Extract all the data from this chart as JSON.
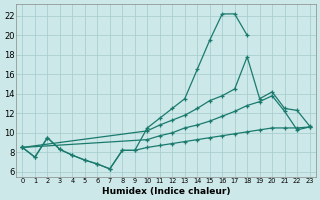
{
  "xlabel": "Humidex (Indice chaleur)",
  "bg_color": "#cce8e8",
  "grid_color": "#aacece",
  "line_color": "#1a7a6e",
  "xlim": [
    -0.5,
    23.5
  ],
  "ylim": [
    5.5,
    23.2
  ],
  "xticks": [
    0,
    1,
    2,
    3,
    4,
    5,
    6,
    7,
    8,
    9,
    10,
    11,
    12,
    13,
    14,
    15,
    16,
    17,
    18,
    19,
    20,
    21,
    22,
    23
  ],
  "yticks": [
    6,
    8,
    10,
    12,
    14,
    16,
    18,
    20,
    22
  ],
  "curves": [
    {
      "x": [
        0,
        1,
        2,
        3,
        4,
        5,
        6,
        7,
        8,
        9,
        10,
        11,
        12,
        13,
        14,
        15,
        16,
        17,
        18
      ],
      "y": [
        8.5,
        7.5,
        9.5,
        8.3,
        7.7,
        7.2,
        6.8,
        6.3,
        8.2,
        8.2,
        10.5,
        11.5,
        12.5,
        13.5,
        16.5,
        19.5,
        22.2,
        22.2,
        20.0
      ]
    },
    {
      "x": [
        0,
        10,
        11,
        12,
        13,
        14,
        15,
        16,
        17,
        18,
        19,
        20,
        21,
        22,
        23
      ],
      "y": [
        8.5,
        10.2,
        10.8,
        11.3,
        11.8,
        12.5,
        13.3,
        13.8,
        14.5,
        17.8,
        13.5,
        14.2,
        12.5,
        12.3,
        10.7
      ]
    },
    {
      "x": [
        0,
        10,
        11,
        12,
        13,
        14,
        15,
        16,
        17,
        18,
        19,
        20,
        21,
        22,
        23
      ],
      "y": [
        8.5,
        9.3,
        9.7,
        10.0,
        10.5,
        10.8,
        11.2,
        11.7,
        12.2,
        12.8,
        13.2,
        13.8,
        12.2,
        10.3,
        10.6
      ]
    },
    {
      "x": [
        0,
        1,
        2,
        3,
        4,
        5,
        6,
        7,
        8,
        9,
        10,
        11,
        12,
        13,
        14,
        15,
        16,
        17,
        18,
        19,
        20,
        21,
        22,
        23
      ],
      "y": [
        8.5,
        7.5,
        9.5,
        8.3,
        7.7,
        7.2,
        6.8,
        6.3,
        8.2,
        8.2,
        8.5,
        8.7,
        8.9,
        9.1,
        9.3,
        9.5,
        9.7,
        9.9,
        10.1,
        10.3,
        10.5,
        10.5,
        10.5,
        10.6
      ]
    }
  ]
}
